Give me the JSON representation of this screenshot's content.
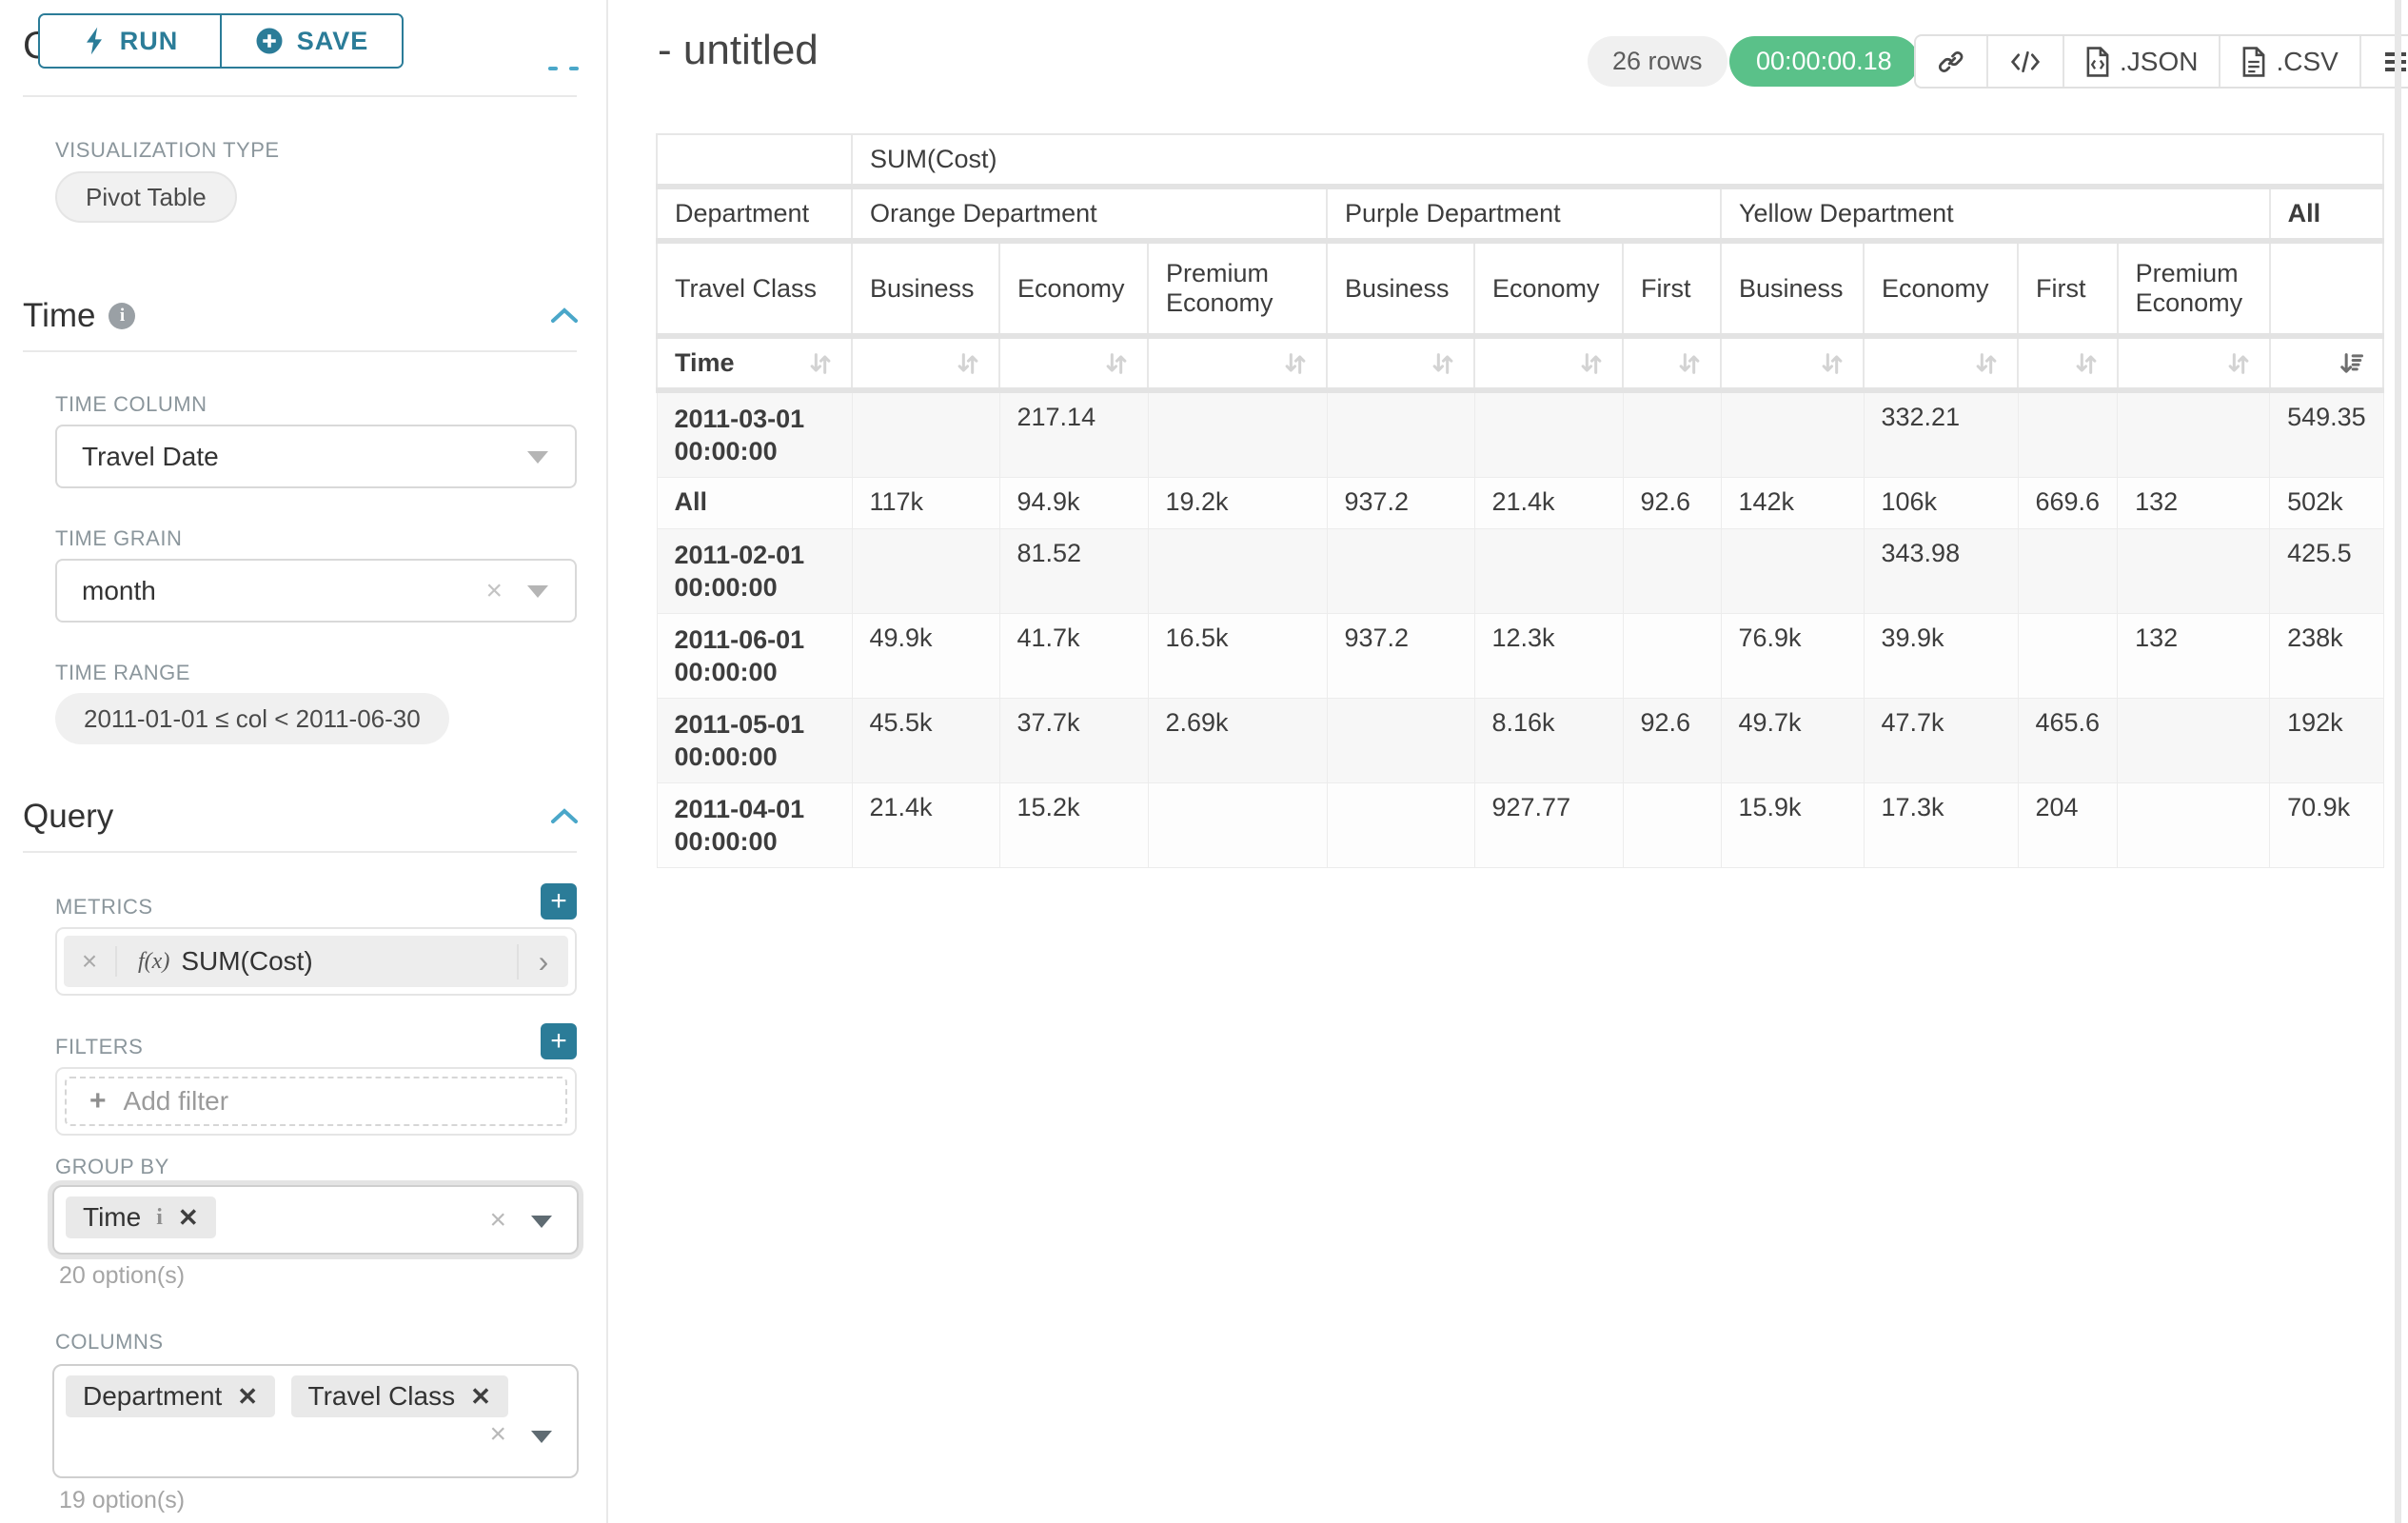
{
  "panel": {
    "run_label": "RUN",
    "save_label": "SAVE",
    "chart_type_section": "Chart Type",
    "viz_type_label": "VISUALIZATION TYPE",
    "viz_type_value": "Pivot Table",
    "time_section": "Time",
    "time_column_label": "TIME COLUMN",
    "time_column_value": "Travel Date",
    "time_grain_label": "TIME GRAIN",
    "time_grain_value": "month",
    "time_range_label": "TIME RANGE",
    "time_range_value": "2011-01-01 ≤ col < 2011-06-30",
    "query_section": "Query",
    "metrics_label": "METRICS",
    "metric_fx": "f(x)",
    "metric_value": "SUM(Cost)",
    "filters_label": "FILTERS",
    "add_filter_label": "Add filter",
    "group_by_label": "GROUP BY",
    "group_by_chips": [
      {
        "label": "Time",
        "has_info": true
      }
    ],
    "group_by_hint": "20 option(s)",
    "columns_label": "COLUMNS",
    "columns_chips": [
      {
        "label": "Department"
      },
      {
        "label": "Travel Class"
      }
    ],
    "columns_hint": "19 option(s)"
  },
  "header": {
    "title": "- untitled",
    "row_count": "26 rows",
    "query_time": "00:00:00.18",
    "export_json_label": ".JSON",
    "export_csv_label": ".CSV"
  },
  "icons": {
    "run": "lightning-bolt",
    "save": "plus-circle",
    "info": "i",
    "collapse": "chevron-up",
    "select_caret": "caret-down",
    "clear": "×",
    "chip_remove": "✕",
    "add": "+",
    "metric_expand": "›",
    "link": "link",
    "embed": "code",
    "menu": "bars",
    "sort_inactive": "sort-arrows",
    "sort_active": "sort-amount-desc"
  },
  "pivot_table": {
    "metric_header": "SUM(Cost)",
    "row2_label": "Department",
    "row3_label": "Travel Class",
    "row4_label": "Time",
    "col_groups": [
      {
        "label": "Orange Department",
        "span": 3
      },
      {
        "label": "Purple Department",
        "span": 3
      },
      {
        "label": "Yellow Department",
        "span": 4
      }
    ],
    "all_col_label": "All",
    "class_headers": [
      "Business",
      "Economy",
      "Premium Economy",
      "Business",
      "Economy",
      "First",
      "Business",
      "Economy",
      "First",
      "Premium Economy"
    ],
    "sorted_desc_column": "All",
    "rows": [
      {
        "label": "2011-03-01 00:00:00",
        "values": [
          "",
          "217.14",
          "",
          "",
          "",
          "",
          "",
          "332.21",
          "",
          "",
          "549.35"
        ]
      },
      {
        "label": "All",
        "values": [
          "117k",
          "94.9k",
          "19.2k",
          "937.2",
          "21.4k",
          "92.6",
          "142k",
          "106k",
          "669.6",
          "132",
          "502k"
        ]
      },
      {
        "label": "2011-02-01 00:00:00",
        "values": [
          "",
          "81.52",
          "",
          "",
          "",
          "",
          "",
          "343.98",
          "",
          "",
          "425.5"
        ]
      },
      {
        "label": "2011-06-01 00:00:00",
        "values": [
          "49.9k",
          "41.7k",
          "16.5k",
          "937.2",
          "12.3k",
          "",
          "76.9k",
          "39.9k",
          "",
          "132",
          "238k"
        ]
      },
      {
        "label": "2011-05-01 00:00:00",
        "values": [
          "45.5k",
          "37.7k",
          "2.69k",
          "",
          "8.16k",
          "92.6",
          "49.7k",
          "47.7k",
          "465.6",
          "",
          "192k"
        ]
      },
      {
        "label": "2011-04-01 00:00:00",
        "values": [
          "21.4k",
          "15.2k",
          "",
          "",
          "927.77",
          "",
          "15.9k",
          "17.3k",
          "204",
          "",
          "70.9k"
        ]
      }
    ]
  }
}
